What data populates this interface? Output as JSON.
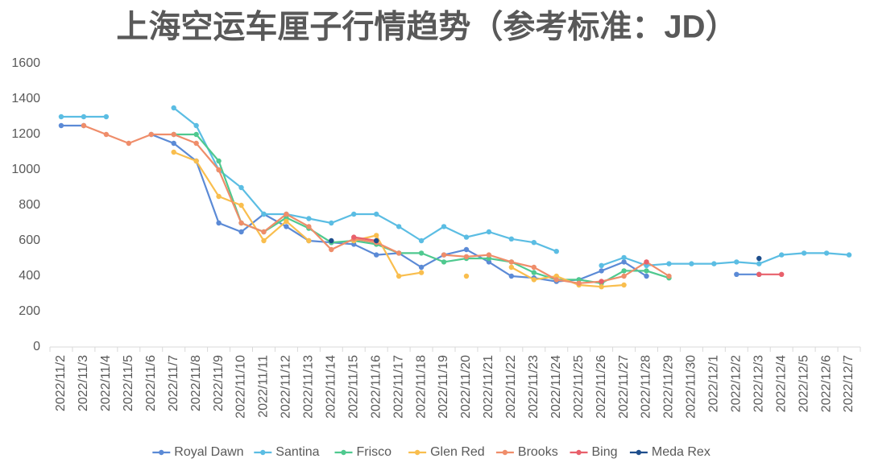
{
  "chart_data": {
    "type": "line",
    "title": "上海空运车厘子行情趋势（参考标准：JD）",
    "categories": [
      "2022/11/2",
      "2022/11/3",
      "2022/11/4",
      "2022/11/5",
      "2022/11/6",
      "2022/11/7",
      "2022/11/8",
      "2022/11/9",
      "2022/11/10",
      "2022/11/11",
      "2022/11/12",
      "2022/11/13",
      "2022/11/14",
      "2022/11/15",
      "2022/11/16",
      "2022/11/17",
      "2022/11/18",
      "2022/11/19",
      "2022/11/20",
      "2022/11/21",
      "2022/11/22",
      "2022/11/23",
      "2022/11/24",
      "2022/11/25",
      "2022/11/26",
      "2022/11/27",
      "2022/11/28",
      "2022/11/29",
      "2022/11/30",
      "2022/12/1",
      "2022/12/2",
      "2022/12/3",
      "2022/12/4",
      "2022/12/5",
      "2022/12/6",
      "2022/12/7"
    ],
    "series": [
      {
        "name": "Royal Dawn",
        "color": "#5b8ad6",
        "values": [
          1250,
          1250,
          null,
          null,
          1200,
          1150,
          1050,
          700,
          650,
          750,
          680,
          600,
          590,
          580,
          520,
          530,
          450,
          520,
          550,
          480,
          400,
          390,
          370,
          380,
          430,
          480,
          400,
          null,
          null,
          null,
          410,
          410,
          null,
          null,
          null,
          null
        ]
      },
      {
        "name": "Santina",
        "color": "#5bbde3",
        "values": [
          1300,
          1300,
          1300,
          null,
          null,
          1350,
          1250,
          1000,
          900,
          750,
          750,
          725,
          700,
          750,
          750,
          680,
          600,
          680,
          620,
          650,
          610,
          590,
          540,
          null,
          460,
          505,
          460,
          470,
          470,
          470,
          480,
          470,
          520,
          530,
          530,
          520
        ]
      },
      {
        "name": "Frisco",
        "color": "#4fc98f",
        "values": [
          null,
          null,
          null,
          null,
          null,
          1200,
          1200,
          1050,
          700,
          650,
          730,
          670,
          590,
          600,
          580,
          530,
          530,
          480,
          500,
          500,
          480,
          420,
          380,
          380,
          360,
          430,
          430,
          390,
          null,
          null,
          null,
          null,
          null,
          null,
          null,
          null
        ]
      },
      {
        "name": "Glen Red",
        "color": "#f9be4e",
        "values": [
          null,
          null,
          null,
          null,
          null,
          1100,
          1050,
          850,
          800,
          600,
          710,
          600,
          null,
          600,
          630,
          400,
          420,
          null,
          400,
          null,
          450,
          380,
          400,
          350,
          340,
          350,
          null,
          null,
          null,
          null,
          null,
          null,
          null,
          null,
          null,
          null
        ]
      },
      {
        "name": "Brooks",
        "color": "#ef8d6a",
        "values": [
          null,
          1250,
          1200,
          1150,
          1200,
          1200,
          1150,
          1000,
          700,
          650,
          750,
          680,
          550,
          610,
          590,
          530,
          null,
          520,
          510,
          520,
          480,
          450,
          380,
          360,
          370,
          400,
          480,
          400,
          null,
          null,
          null,
          null,
          null,
          null,
          null,
          null
        ]
      },
      {
        "name": "Bing",
        "color": "#e8606b",
        "values": [
          null,
          null,
          null,
          null,
          null,
          null,
          null,
          null,
          null,
          null,
          null,
          null,
          null,
          620,
          600,
          null,
          null,
          null,
          null,
          null,
          null,
          null,
          null,
          null,
          370,
          null,
          480,
          null,
          null,
          null,
          null,
          410,
          410,
          null,
          null,
          null
        ]
      },
      {
        "name": "Meda Rex",
        "color": "#1e4e8c",
        "values": [
          null,
          null,
          null,
          null,
          null,
          null,
          null,
          null,
          null,
          null,
          null,
          null,
          600,
          null,
          600,
          null,
          null,
          null,
          null,
          null,
          null,
          null,
          null,
          null,
          null,
          null,
          null,
          null,
          null,
          null,
          null,
          500,
          null,
          null,
          null,
          null
        ]
      }
    ],
    "ylim": [
      0,
      1600
    ],
    "yticks": [
      0,
      200,
      400,
      600,
      800,
      1000,
      1200,
      1400,
      1600
    ],
    "grid": false,
    "legend": "bottom"
  }
}
